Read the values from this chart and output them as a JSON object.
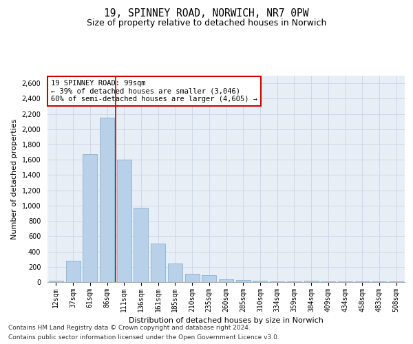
{
  "title_line1": "19, SPINNEY ROAD, NORWICH, NR7 0PW",
  "title_line2": "Size of property relative to detached houses in Norwich",
  "xlabel": "Distribution of detached houses by size in Norwich",
  "ylabel": "Number of detached properties",
  "categories": [
    "12sqm",
    "37sqm",
    "61sqm",
    "86sqm",
    "111sqm",
    "136sqm",
    "161sqm",
    "185sqm",
    "210sqm",
    "235sqm",
    "260sqm",
    "285sqm",
    "310sqm",
    "334sqm",
    "359sqm",
    "384sqm",
    "409sqm",
    "434sqm",
    "458sqm",
    "483sqm",
    "508sqm"
  ],
  "values": [
    20,
    275,
    1675,
    2150,
    1600,
    975,
    500,
    245,
    110,
    90,
    40,
    30,
    20,
    10,
    5,
    15,
    8,
    8,
    8,
    8,
    8
  ],
  "bar_color": "#b8d0e8",
  "bar_edge_color": "#7aaad0",
  "annotation_box_text": "19 SPINNEY ROAD: 99sqm\n← 39% of detached houses are smaller (3,046)\n60% of semi-detached houses are larger (4,605) →",
  "annotation_box_color": "#ffffff",
  "annotation_box_edge_color": "#cc0000",
  "redline_color": "#cc0000",
  "ylim": [
    0,
    2700
  ],
  "yticks": [
    0,
    200,
    400,
    600,
    800,
    1000,
    1200,
    1400,
    1600,
    1800,
    2000,
    2200,
    2400,
    2600
  ],
  "grid_color": "#c8d4e8",
  "background_color": "#e8eef6",
  "footer_line1": "Contains HM Land Registry data © Crown copyright and database right 2024.",
  "footer_line2": "Contains public sector information licensed under the Open Government Licence v3.0.",
  "title_fontsize": 10.5,
  "subtitle_fontsize": 9,
  "axis_label_fontsize": 8,
  "tick_fontsize": 7,
  "annotation_fontsize": 7.5,
  "footer_fontsize": 6.5
}
